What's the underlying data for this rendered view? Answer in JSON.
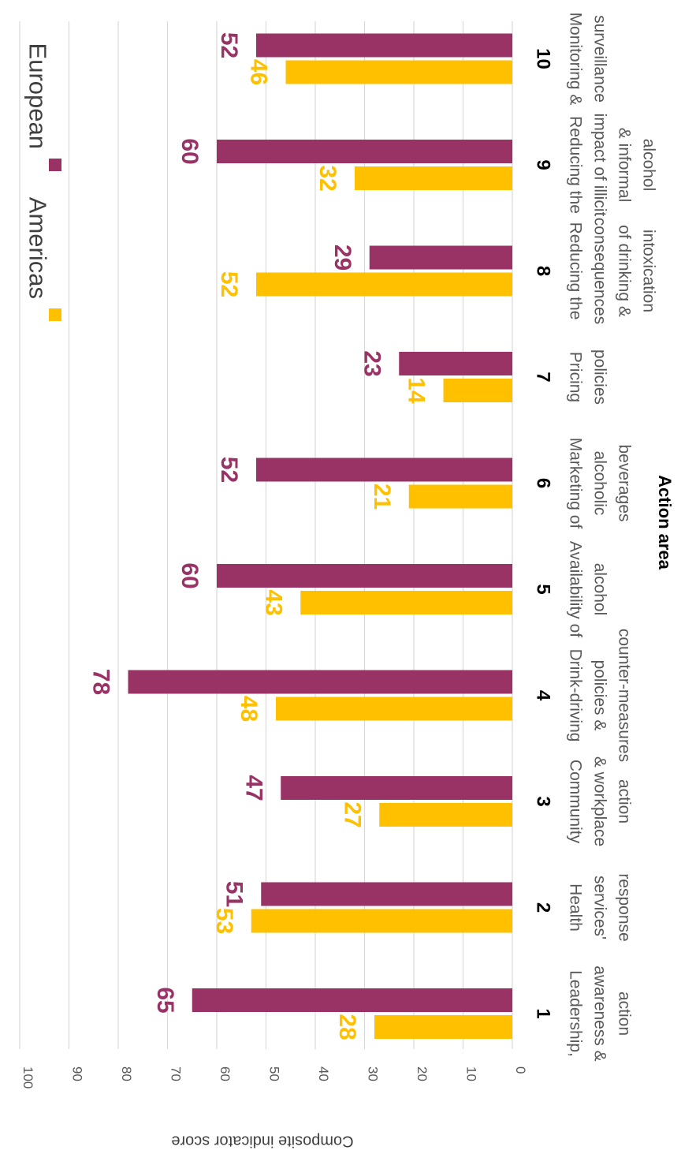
{
  "chart_data": {
    "type": "bar",
    "orientation": "horizontal",
    "rotation": "90° clockwise",
    "ylabel": "Composite indicator score",
    "xlabel": "Action area",
    "ylim": [
      0,
      100
    ],
    "ticks": [
      0,
      10,
      20,
      30,
      40,
      50,
      60,
      70,
      80,
      90,
      100
    ],
    "grid": true,
    "legend_position": "top-right",
    "categories": [
      "1",
      "2",
      "3",
      "4",
      "5",
      "6",
      "7",
      "8",
      "9",
      "10"
    ],
    "category_descriptions": [
      [
        "Leadership,",
        "awareness &",
        "action"
      ],
      [
        "Health",
        "services'",
        "response"
      ],
      [
        "Community",
        "& workplace",
        "action"
      ],
      [
        "Drink-driving",
        "policies &",
        "counter-measures"
      ],
      [
        "Availability of",
        "alcohol"
      ],
      [
        "Marketing of",
        "alcoholic",
        "beverages"
      ],
      [
        "Pricing",
        "policies"
      ],
      [
        "Reducing the",
        "consequences",
        "of drinking &",
        "intoxication"
      ],
      [
        "Reducing the",
        "impact of illicit",
        "& informal",
        "alcohol"
      ],
      [
        "Monitoring &",
        "surveillance"
      ]
    ],
    "series": [
      {
        "name": "Americas",
        "color": "#FFC000",
        "values": [
          28,
          53,
          27,
          48,
          43,
          21,
          14,
          52,
          32,
          46
        ]
      },
      {
        "name": "European",
        "color": "#993366",
        "values": [
          65,
          51,
          47,
          78,
          60,
          52,
          23,
          29,
          60,
          52
        ]
      }
    ]
  }
}
